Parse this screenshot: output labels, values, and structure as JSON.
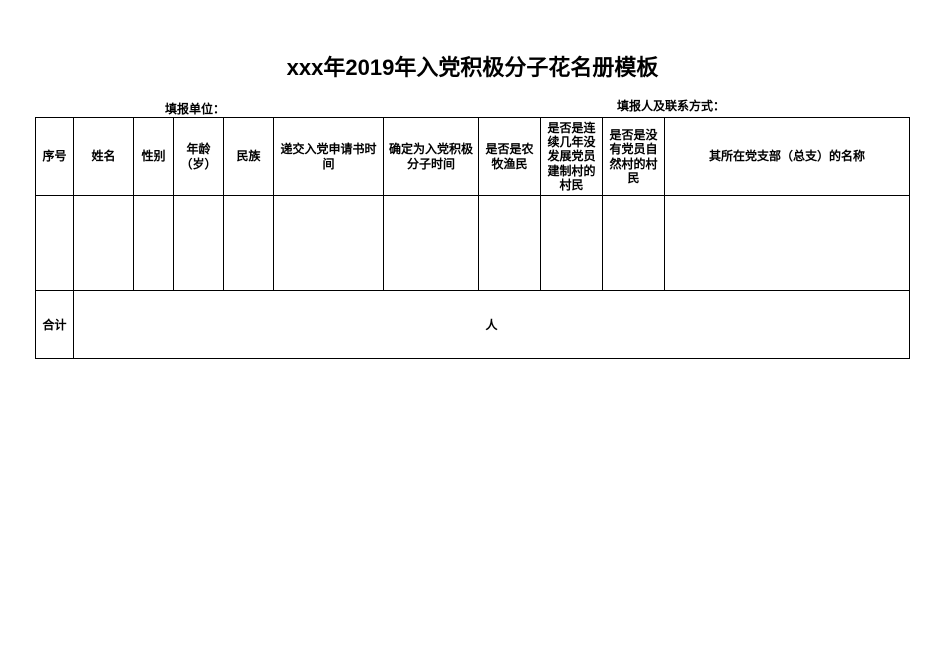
{
  "title": "xxx年2019年入党积极分子花名册模板",
  "header": {
    "unit_label": "填报单位：",
    "contact_label": "填报人及联系方式："
  },
  "table": {
    "columns": [
      {
        "label": "序号",
        "class": "col-seq"
      },
      {
        "label": "姓名",
        "class": "col-name"
      },
      {
        "label": "性别",
        "class": "col-gender"
      },
      {
        "label": "年龄（岁）",
        "class": "col-age"
      },
      {
        "label": "民族",
        "class": "col-ethnic"
      },
      {
        "label": "递交入党申请书时间",
        "class": "col-apply"
      },
      {
        "label": "确定为入党积极分子时间",
        "class": "col-confirm"
      },
      {
        "label": "是否是农牧渔民",
        "class": "col-farmer"
      },
      {
        "label": "是否是连续几年没发展党员建制村的村民",
        "class": "col-village1"
      },
      {
        "label": "是否是没有党员自然村的村民",
        "class": "col-village2"
      },
      {
        "label": "其所在党支部（总支）的名称",
        "class": "col-branch"
      }
    ],
    "rows": [
      [
        "",
        "",
        "",
        "",
        "",
        "",
        "",
        "",
        "",
        "",
        ""
      ]
    ],
    "total": {
      "label": "合计",
      "value": "人"
    }
  },
  "styling": {
    "title_fontsize": 22,
    "header_fontsize": 12,
    "cell_fontsize": 12,
    "border_color": "#000000",
    "background_color": "#ffffff",
    "text_color": "#000000",
    "header_row_height": 78,
    "data_row_height": 95,
    "total_row_height": 68
  }
}
